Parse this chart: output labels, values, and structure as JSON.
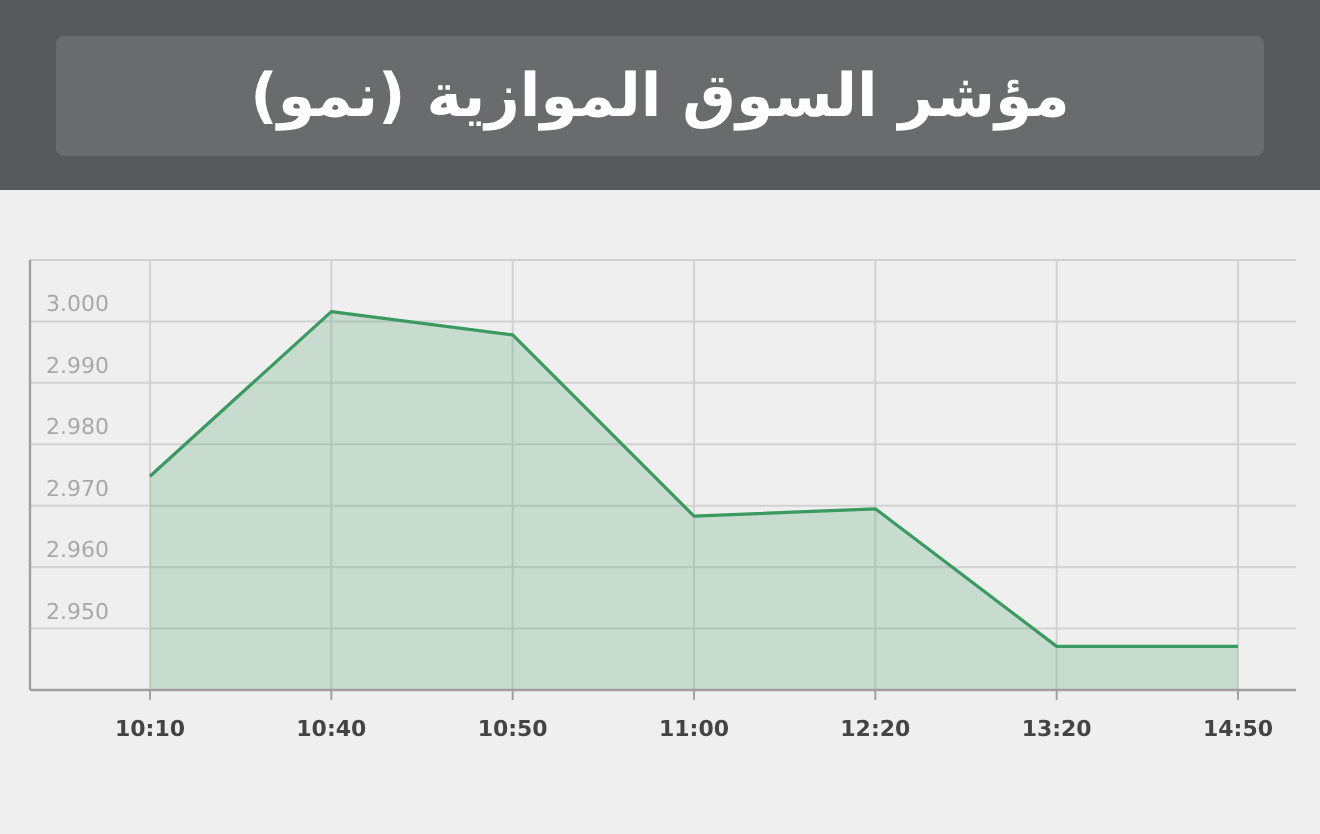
{
  "chart_data": {
    "type": "area",
    "title": "مؤشر السوق الموازية (نمو)",
    "categories": [
      "10:10",
      "10:40",
      "10:50",
      "11:00",
      "12:20",
      "13:20",
      "14:50"
    ],
    "series": [
      {
        "color": "#3a9a60",
        "values": [
          2974.8,
          3001.6,
          2997.8,
          2968.3,
          2969.5,
          2947.1,
          2947.1
        ]
      }
    ],
    "ylim": [
      2940,
      3010
    ],
    "yticks": [
      {
        "value": 2950,
        "label": "2.950"
      },
      {
        "value": 2960,
        "label": "2.960"
      },
      {
        "value": 2970,
        "label": "2.970"
      },
      {
        "value": 2980,
        "label": "2.980"
      },
      {
        "value": 2990,
        "label": "2.990"
      },
      {
        "value": 3000,
        "label": "3.000"
      },
      {
        "value": 3010,
        "label": null
      }
    ],
    "grid": true
  }
}
